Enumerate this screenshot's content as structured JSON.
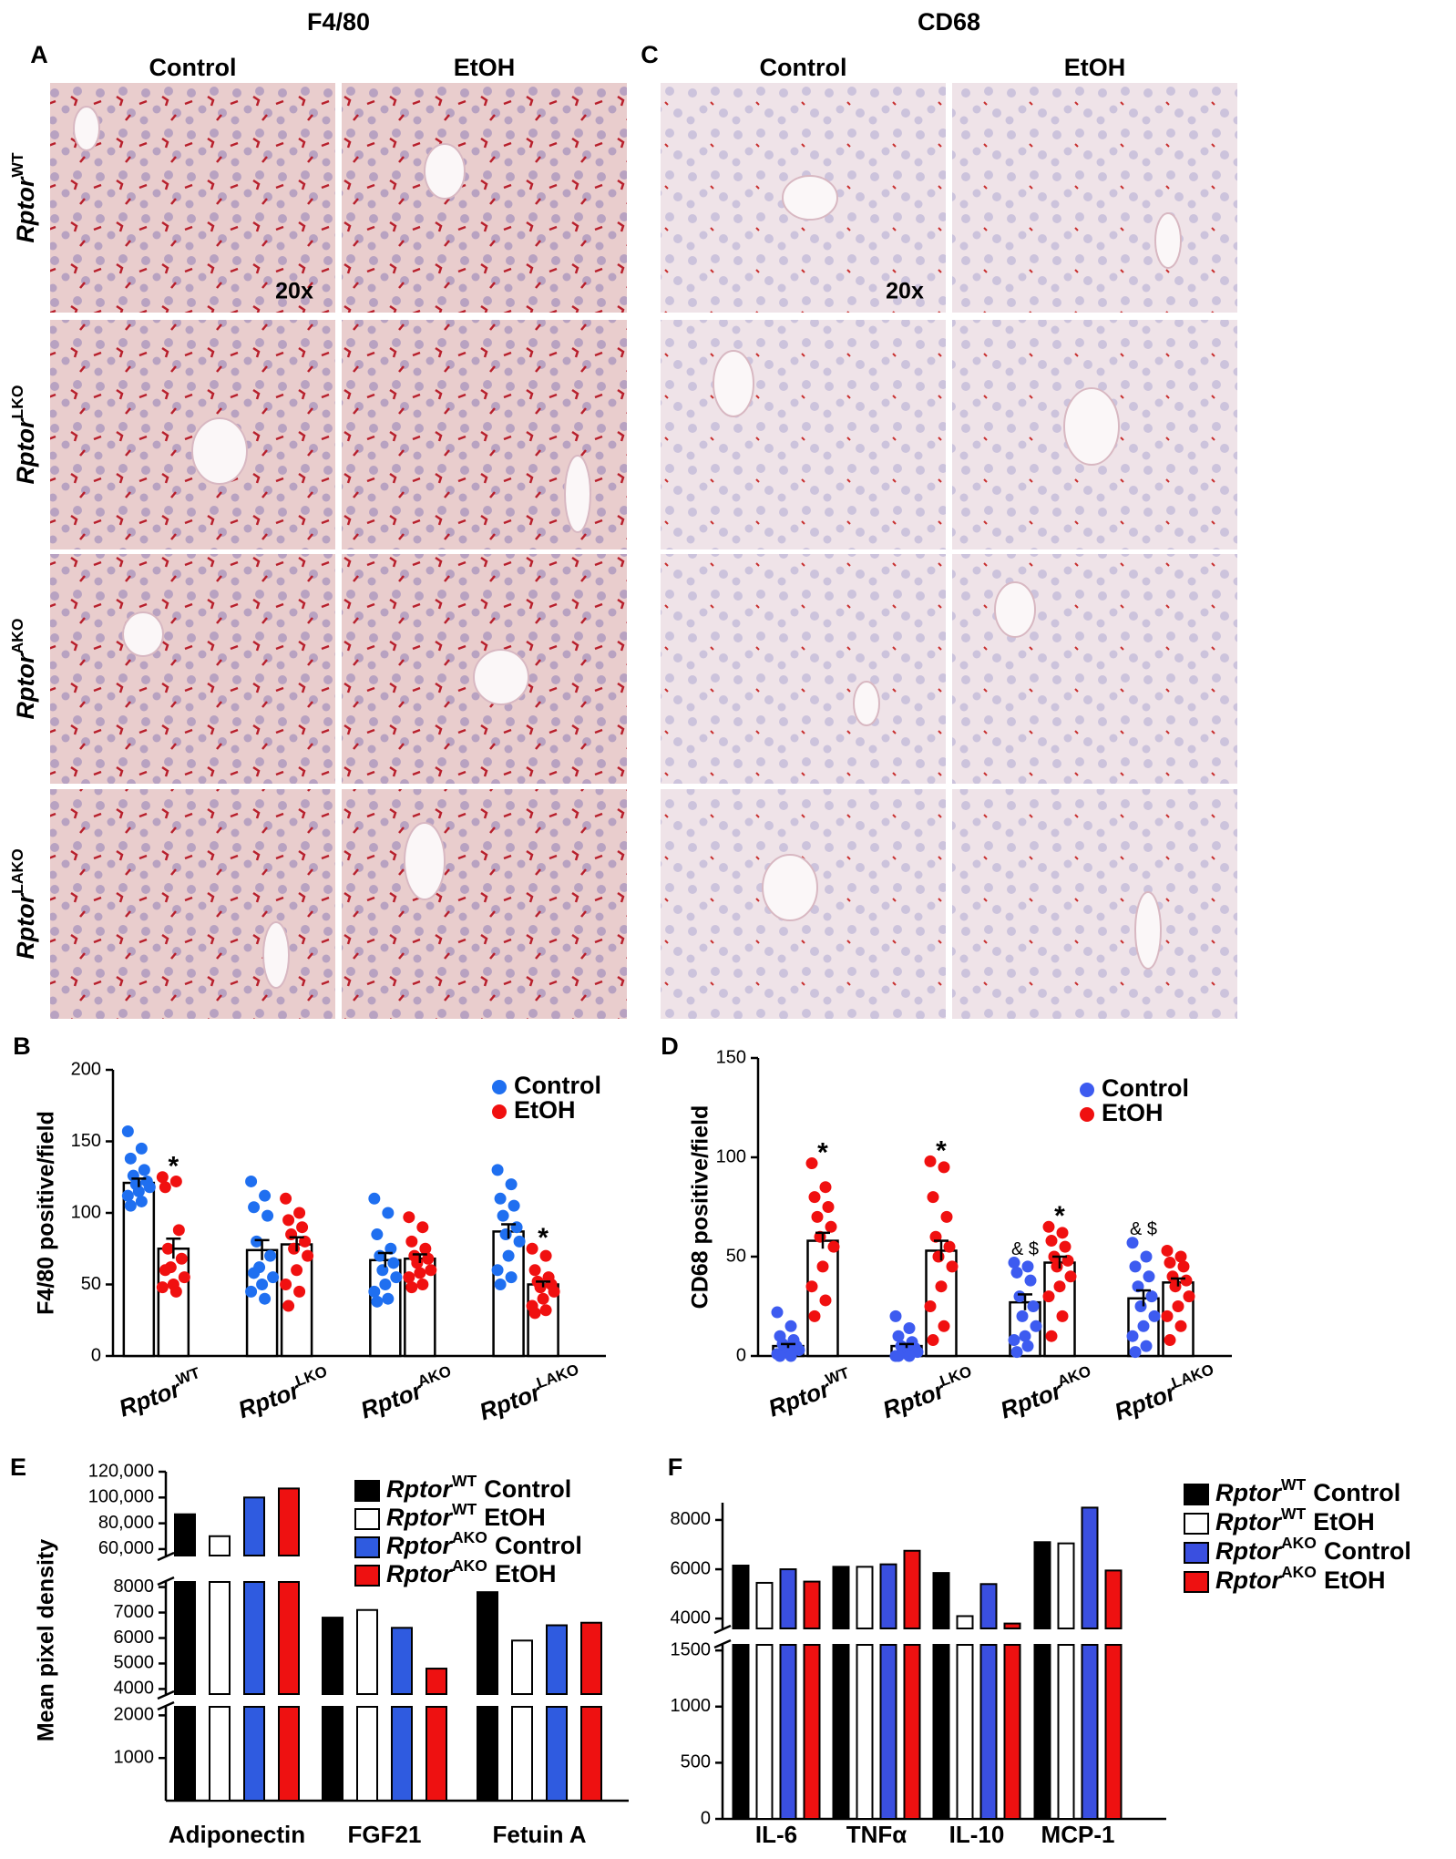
{
  "micrographs": {
    "panels": [
      {
        "letter": "A",
        "title": "F4/80",
        "columns": [
          "Control",
          "EtOH"
        ],
        "magnification": "20x"
      },
      {
        "letter": "C",
        "title": "CD68",
        "columns": [
          "Control",
          "EtOH"
        ],
        "magnification": "20x"
      }
    ],
    "rows": [
      {
        "base": "Rptor",
        "sup": "WT"
      },
      {
        "base": "Rptor",
        "sup": "LKO"
      },
      {
        "base": "Rptor",
        "sup": "AKO"
      },
      {
        "base": "Rptor",
        "sup": "LAKO"
      }
    ]
  },
  "chart_data": [
    {
      "type": "bar_scatter",
      "letter": "B",
      "y_label": "F4/80 positive/field",
      "categories": [
        {
          "base": "Rptor",
          "sup": "WT"
        },
        {
          "base": "Rptor",
          "sup": "LKO"
        },
        {
          "base": "Rptor",
          "sup": "AKO"
        },
        {
          "base": "Rptor",
          "sup": "LAKO"
        }
      ],
      "ylim": [
        0,
        200
      ],
      "yticks": [
        0,
        50,
        100,
        150,
        200
      ],
      "legend": "top-right",
      "series": [
        {
          "name": "Control",
          "color": "#1f6ff0",
          "values": [
            121,
            74,
            67,
            87
          ],
          "errors": [
            3,
            7,
            5,
            5
          ],
          "annotations": [
            null,
            null,
            null,
            null
          ],
          "points": [
            [
              157,
              145,
              138,
              130,
              126,
              122,
              120,
              118,
              115,
              112,
              108,
              105
            ],
            [
              122,
              112,
              104,
              98,
              80,
              70,
              62,
              55,
              50,
              45,
              40,
              58
            ],
            [
              110,
              100,
              85,
              75,
              70,
              65,
              60,
              55,
              50,
              45,
              40,
              38
            ],
            [
              130,
              120,
              110,
              105,
              98,
              90,
              85,
              80,
              70,
              60,
              55,
              50
            ]
          ]
        },
        {
          "name": "EtOH",
          "color": "#f01010",
          "values": [
            75,
            78,
            68,
            50
          ],
          "errors": [
            7,
            5,
            3,
            2
          ],
          "annotations": [
            "*",
            null,
            null,
            "*"
          ],
          "points": [
            [
              125,
              122,
              118,
              88,
              75,
              68,
              62,
              55,
              50,
              48,
              45,
              60
            ],
            [
              110,
              100,
              95,
              90,
              85,
              80,
              75,
              70,
              60,
              50,
              45,
              35
            ],
            [
              97,
              90,
              80,
              75,
              70,
              68,
              65,
              60,
              58,
              55,
              50,
              48
            ],
            [
              75,
              70,
              60,
              55,
              52,
              50,
              48,
              45,
              40,
              35,
              32,
              30
            ]
          ]
        }
      ]
    },
    {
      "type": "bar_scatter",
      "letter": "D",
      "y_label": "CD68 positive/field",
      "categories": [
        {
          "base": "Rptor",
          "sup": "WT"
        },
        {
          "base": "Rptor",
          "sup": "LKO"
        },
        {
          "base": "Rptor",
          "sup": "AKO"
        },
        {
          "base": "Rptor",
          "sup": "LAKO"
        }
      ],
      "ylim": [
        0,
        150
      ],
      "yticks": [
        0,
        50,
        100,
        150
      ],
      "legend": "top-right",
      "series": [
        {
          "name": "Control",
          "color": "#3d5bf0",
          "values": [
            5,
            5,
            27,
            29
          ],
          "errors": [
            1,
            1,
            4,
            4
          ],
          "annotations": [
            null,
            null,
            "& $",
            "& $"
          ],
          "points": [
            [
              22,
              15,
              10,
              8,
              6,
              5,
              4,
              3,
              2,
              1,
              0,
              0
            ],
            [
              20,
              14,
              10,
              7,
              5,
              4,
              3,
              2,
              1,
              0,
              0,
              0
            ],
            [
              47,
              45,
              42,
              38,
              30,
              25,
              20,
              15,
              10,
              8,
              5,
              2
            ],
            [
              57,
              50,
              45,
              40,
              35,
              30,
              25,
              20,
              15,
              10,
              5,
              2
            ]
          ]
        },
        {
          "name": "EtOH",
          "color": "#f01010",
          "values": [
            58,
            53,
            47,
            37
          ],
          "errors": [
            4,
            5,
            3,
            2
          ],
          "annotations": [
            "*",
            "*",
            "*",
            null
          ],
          "points": [
            [
              97,
              85,
              80,
              75,
              70,
              65,
              60,
              55,
              45,
              35,
              28,
              20
            ],
            [
              98,
              95,
              80,
              70,
              60,
              55,
              50,
              45,
              35,
              25,
              15,
              8
            ],
            [
              65,
              62,
              58,
              55,
              50,
              48,
              45,
              40,
              35,
              30,
              20,
              10
            ],
            [
              53,
              50,
              47,
              45,
              40,
              38,
              35,
              30,
              25,
              20,
              15,
              8
            ]
          ]
        }
      ]
    },
    {
      "type": "broken_bar",
      "letter": "E",
      "y_label": "Mean pixel density",
      "categories": [
        "Adiponectin",
        "FGF21",
        "Fetuin A"
      ],
      "segments": [
        {
          "ylim": [
            0,
            2200
          ],
          "yticks": [
            1000,
            2000
          ]
        },
        {
          "ylim": [
            3800,
            8200
          ],
          "yticks": [
            4000,
            5000,
            6000,
            7000,
            8000
          ]
        },
        {
          "ylim": [
            55000,
            120000
          ],
          "yticks": [
            {
              "value": 60000,
              "label": "60,000"
            },
            {
              "value": 80000,
              "label": "80,000"
            },
            {
              "value": 100000,
              "label": "100,000"
            },
            {
              "value": 120000,
              "label": "120,000"
            }
          ]
        }
      ],
      "series": [
        {
          "name": "Control",
          "genotype": {
            "base": "Rptor",
            "sup": "WT"
          },
          "color": "#000000",
          "values": [
            87000,
            6800,
            7800
          ]
        },
        {
          "name": "EtOH",
          "genotype": {
            "base": "Rptor",
            "sup": "WT"
          },
          "color": "#ffffff",
          "values": [
            70000,
            7100,
            5900
          ]
        },
        {
          "name": "Control",
          "genotype": {
            "base": "Rptor",
            "sup": "AKO"
          },
          "color": "#2f5be0",
          "values": [
            100000,
            6400,
            6500
          ]
        },
        {
          "name": "EtOH",
          "genotype": {
            "base": "Rptor",
            "sup": "AKO"
          },
          "color": "#ee1111",
          "values": [
            107000,
            4800,
            6600
          ]
        }
      ]
    },
    {
      "type": "broken_bar",
      "letter": "F",
      "categories": [
        "IL-6",
        "TNFα",
        "IL-10",
        "MCP-1"
      ],
      "segments": [
        {
          "ylim": [
            0,
            1550
          ],
          "yticks": [
            0,
            500,
            1000,
            1500
          ]
        },
        {
          "ylim": [
            3600,
            8700
          ],
          "yticks": [
            4000,
            6000,
            8000
          ]
        }
      ],
      "series": [
        {
          "name": "Control",
          "genotype": {
            "base": "Rptor",
            "sup": "WT"
          },
          "color": "#000000",
          "values": [
            6150,
            6100,
            5850,
            7100
          ]
        },
        {
          "name": "EtOH",
          "genotype": {
            "base": "Rptor",
            "sup": "WT"
          },
          "color": "#ffffff",
          "values": [
            5450,
            6100,
            4100,
            7050
          ]
        },
        {
          "name": "Control",
          "genotype": {
            "base": "Rptor",
            "sup": "AKO"
          },
          "color": "#3a4fe0",
          "values": [
            6000,
            6200,
            5400,
            8500
          ]
        },
        {
          "name": "EtOH",
          "genotype": {
            "base": "Rptor",
            "sup": "AKO"
          },
          "color": "#ee1111",
          "values": [
            5500,
            6750,
            3800,
            5950
          ]
        }
      ]
    }
  ]
}
